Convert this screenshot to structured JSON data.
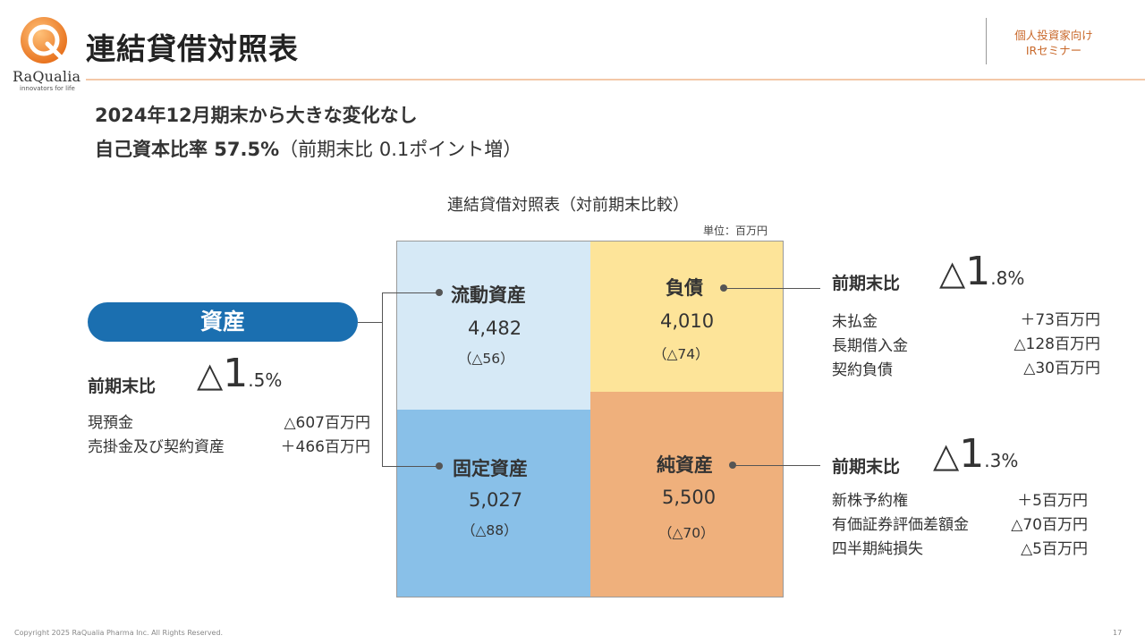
{
  "header": {
    "logo_text": "RaQualia",
    "logo_tagline": "innovators for life",
    "title": "連結貸借対照表",
    "badge_line1": "個人投資家向け",
    "badge_line2": "IRセミナー",
    "brand_color": "#f08a3c"
  },
  "subtitle": {
    "line1": "2024年12月期末から大きな変化なし",
    "line2_bold": "自己資本比率 57.5%",
    "line2_rest": "（前期末比 0.1ポイント増）"
  },
  "chart": {
    "title": "連結貸借対照表（対前期末比較）",
    "unit": "単位：百万円",
    "blocks": {
      "current_assets": {
        "name": "流動資産",
        "value": "4,482",
        "diff": "（△56）",
        "color": "#d6e9f6"
      },
      "fixed_assets": {
        "name": "固定資産",
        "value": "5,027",
        "diff": "（△88）",
        "color": "#89c0e8"
      },
      "liabilities": {
        "name": "負債",
        "value": "4,010",
        "diff": "（△74）",
        "color": "#fde499"
      },
      "net_assets": {
        "name": "純資産",
        "value": "5,500",
        "diff": "（△70）",
        "color": "#efb07c"
      }
    }
  },
  "assets": {
    "pill_label": "資産",
    "pill_color": "#1b6fb0",
    "cmp_label": "前期末比",
    "cmp_tri": "△",
    "cmp_int": "1",
    "cmp_dec": ".5%",
    "rows": [
      {
        "label": "現預金",
        "value": "△607百万円"
      },
      {
        "label": "売掛金及び契約資産",
        "value": "＋466百万円"
      }
    ]
  },
  "liabilities": {
    "cmp_label": "前期末比",
    "cmp_tri": "△",
    "cmp_int": "1",
    "cmp_dec": ".8%",
    "rows": [
      {
        "label": "未払金",
        "value": "＋73百万円"
      },
      {
        "label": "長期借入金",
        "value": "△128百万円"
      },
      {
        "label": "契約負債",
        "value": "△30百万円"
      }
    ]
  },
  "net_assets": {
    "cmp_label": "前期末比",
    "cmp_tri": "△",
    "cmp_int": "1",
    "cmp_dec": ".3%",
    "rows": [
      {
        "label": "新株予約権",
        "value": "＋5百万円"
      },
      {
        "label": "有価証券評価差額金",
        "value": "△70百万円"
      },
      {
        "label": "四半期純損失",
        "value": "△5百万円"
      }
    ]
  },
  "footer": {
    "copyright": "Copyright 2025 RaQualia Pharma Inc. All Rights Reserved.",
    "page_number": "17"
  }
}
